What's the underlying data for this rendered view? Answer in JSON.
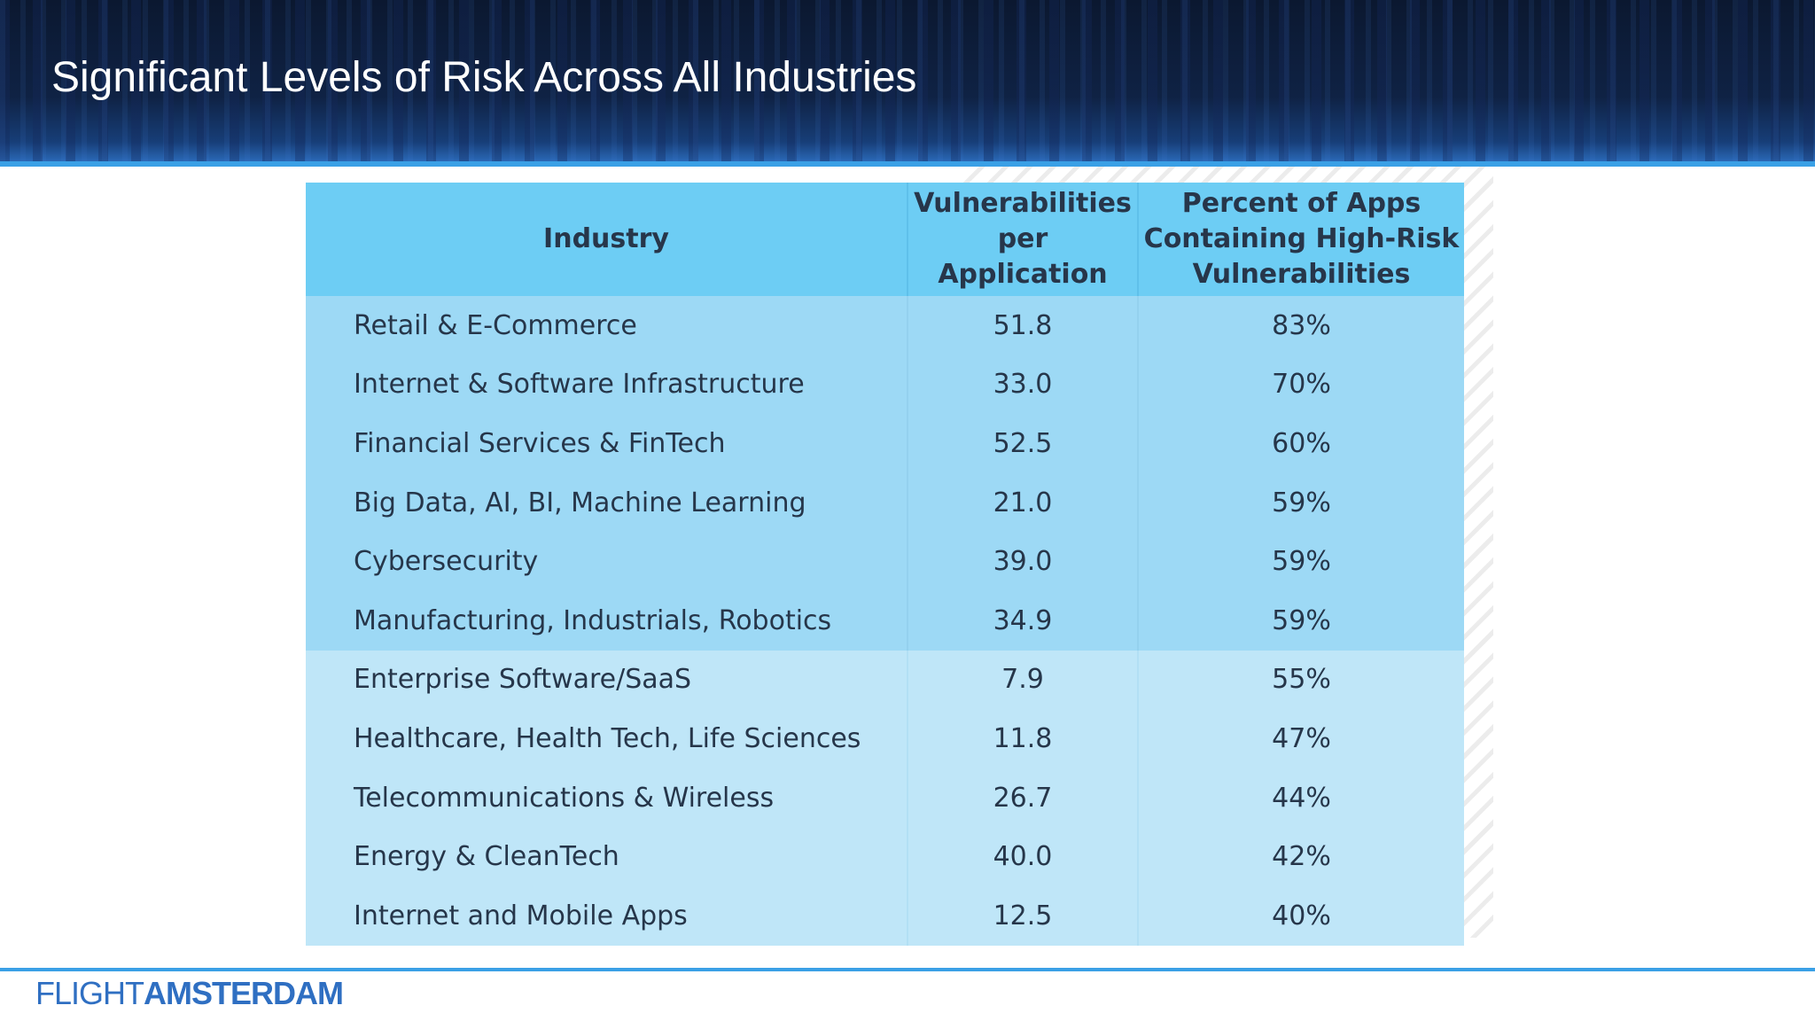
{
  "slide": {
    "title": "Significant Levels of Risk Across All Industries"
  },
  "table": {
    "headers": {
      "industry": "Industry",
      "vuln_line1": "Vulnerabilities",
      "vuln_line2": "per Application",
      "pct_line1": "Percent of Apps",
      "pct_line2": "Containing High-Risk",
      "pct_line3": "Vulnerabilities"
    },
    "rows": [
      {
        "industry": "Retail & E-Commerce",
        "vulns": "51.8",
        "pct": "83%"
      },
      {
        "industry": "Internet & Software Infrastructure",
        "vulns": "33.0",
        "pct": "70%"
      },
      {
        "industry": "Financial Services & FinTech",
        "vulns": "52.5",
        "pct": "60%"
      },
      {
        "industry": "Big Data, AI, BI, Machine Learning",
        "vulns": "21.0",
        "pct": "59%"
      },
      {
        "industry": "Cybersecurity",
        "vulns": "39.0",
        "pct": "59%"
      },
      {
        "industry": "Manufacturing, Industrials, Robotics",
        "vulns": "34.9",
        "pct": "59%"
      },
      {
        "industry": "Enterprise Software/SaaS",
        "vulns": "7.9",
        "pct": "55%"
      },
      {
        "industry": "Healthcare, Health Tech, Life Sciences",
        "vulns": "11.8",
        "pct": "47%"
      },
      {
        "industry": "Telecommunications & Wireless",
        "vulns": "26.7",
        "pct": "44%"
      },
      {
        "industry": "Energy & CleanTech",
        "vulns": "40.0",
        "pct": "42%"
      },
      {
        "industry": "Internet and Mobile Apps",
        "vulns": "12.5",
        "pct": "40%"
      }
    ]
  },
  "footer": {
    "logo_light": "FLIGHT",
    "logo_bold": "AMSTERDAM"
  },
  "colors": {
    "header_bg": "#0f2244",
    "accent_line": "#3aa0e6",
    "table_header": "#6dcdf4",
    "rows_high": "#9dd9f5",
    "rows_low": "#bfe6f8",
    "logo": "#2f6fc2"
  }
}
